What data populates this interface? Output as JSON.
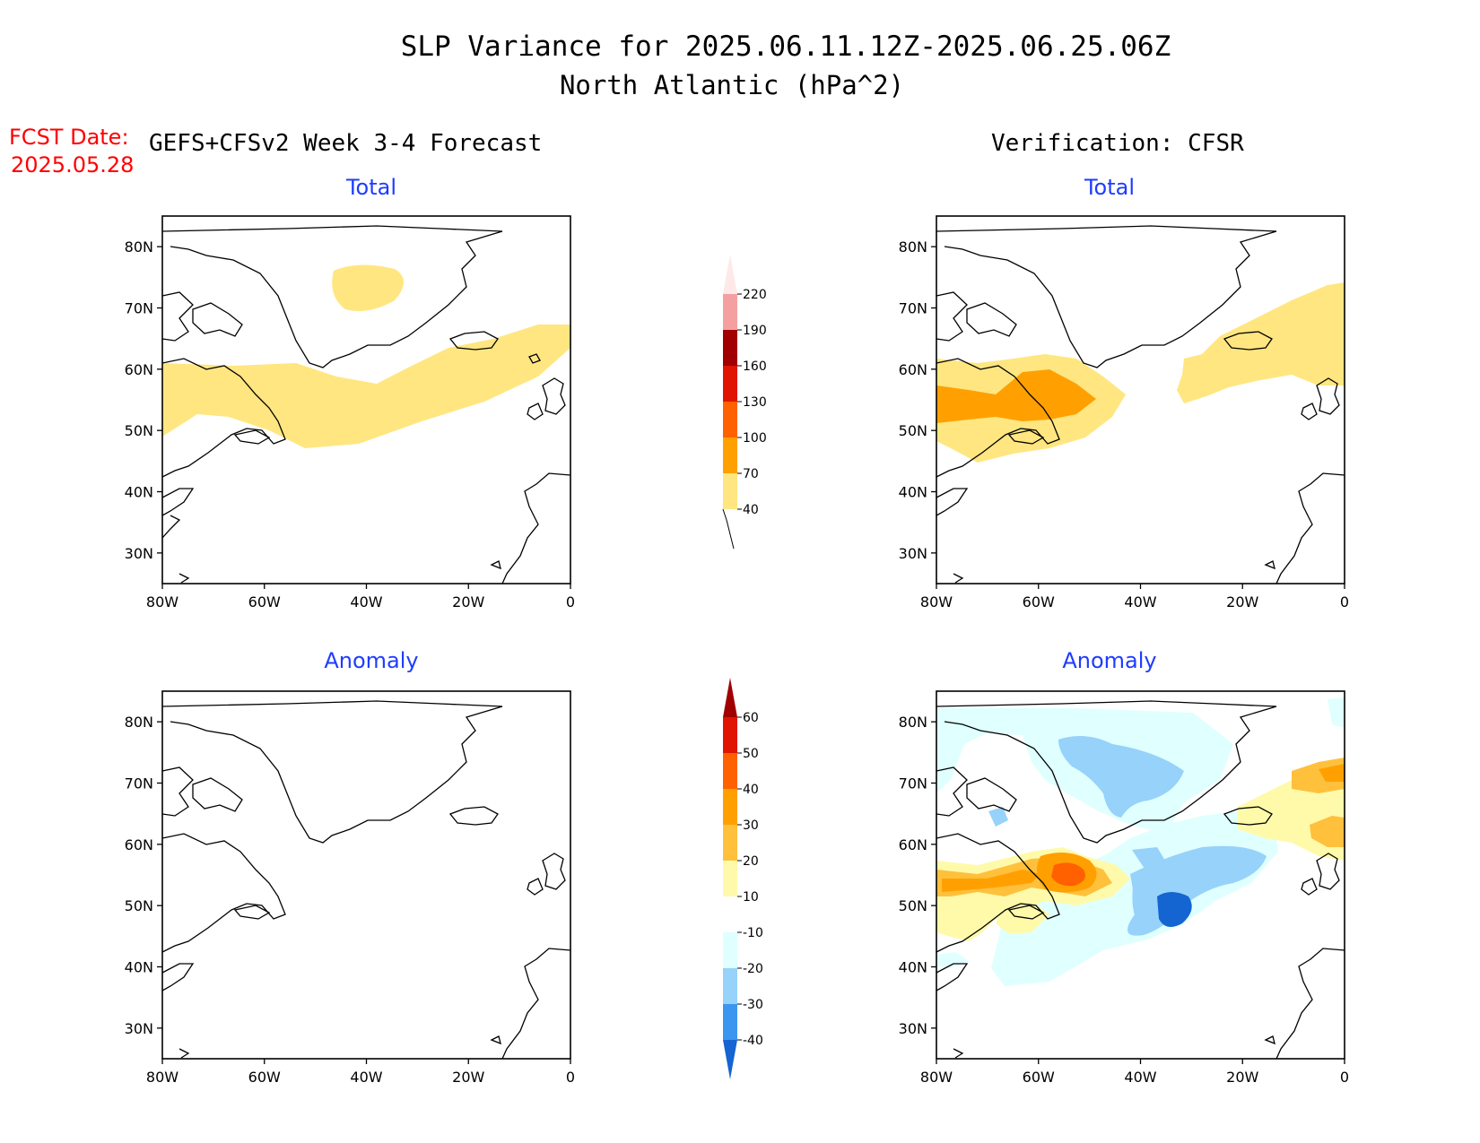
{
  "title": {
    "line1": "SLP Variance for 2025.06.11.12Z-2025.06.25.06Z",
    "line2": "North Atlantic (hPa^2)"
  },
  "fcst": {
    "label": "FCST Date:",
    "date": "2025.05.28"
  },
  "columns": {
    "forecast": "GEFS+CFSv2 Week 3-4 Forecast",
    "verification": "Verification: CFSR"
  },
  "panel_titles": {
    "total": "Total",
    "anomaly": "Anomaly"
  },
  "axes": {
    "lat_labels": [
      "80N",
      "70N",
      "60N",
      "50N",
      "40N",
      "30N"
    ],
    "lat_values": [
      80,
      70,
      60,
      50,
      40,
      30
    ],
    "lon_labels": [
      "80W",
      "60W",
      "40W",
      "20W",
      "0"
    ],
    "lon_values": [
      -80,
      -60,
      -40,
      -20,
      0
    ],
    "lon_range": [
      -80,
      0
    ],
    "lat_range": [
      25,
      85
    ]
  },
  "colorbars": {
    "total": {
      "levels": [
        "40",
        "70",
        "100",
        "130",
        "160",
        "190",
        "220"
      ],
      "colors": [
        "#ffe680",
        "#ffa000",
        "#ff6000",
        "#e01400",
        "#a00000",
        "#f5a0a0",
        "#ffe8e8"
      ]
    },
    "anomaly": {
      "levels": [
        "-40",
        "-30",
        "-20",
        "-10",
        "10",
        "20",
        "30",
        "40",
        "50",
        "60"
      ],
      "colors": [
        "#1464d2",
        "#3c96f0",
        "#96d2fa",
        "#e0ffff",
        "#ffffff",
        "#fffaaa",
        "#ffc03c",
        "#ffa000",
        "#ff6000",
        "#e01400",
        "#a00000"
      ]
    }
  },
  "colors": {
    "title_blue": "#1e3cff",
    "fcst_red": "#ff0000"
  }
}
